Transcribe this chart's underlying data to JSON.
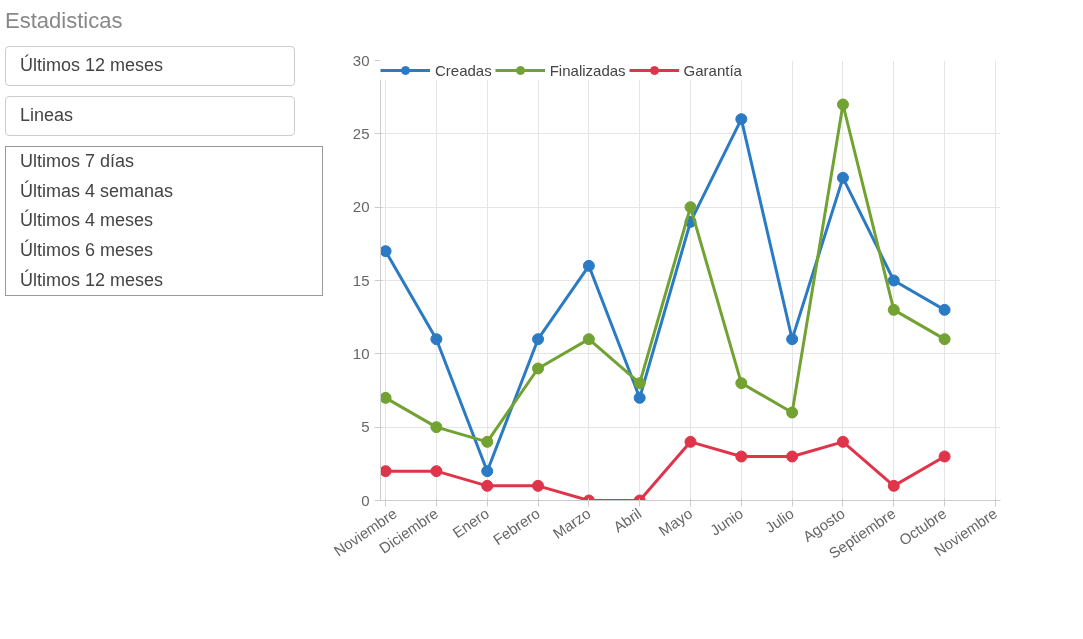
{
  "chart_data": {
    "type": "line",
    "title": "Estadisticas",
    "annotations": [
      "Últimos 12 meses",
      "Lineas",
      "Ultimos 7 días",
      "Últimas 4 semanas",
      "Últimos 4 meses",
      "Últimos 6 meses",
      "Últimos 12 meses"
    ],
    "categories": [
      "Noviembre",
      "Diciembre",
      "Enero",
      "Febrero",
      "Marzo",
      "Abril",
      "Mayo",
      "Junio",
      "Julio",
      "Agosto",
      "Septiembre",
      "Octubre",
      "Noviembre"
    ],
    "series": [
      {
        "name": "Creadas",
        "color": "#2a7bc4",
        "values": [
          17,
          11,
          2,
          11,
          16,
          7,
          19,
          26,
          11,
          22,
          15,
          13,
          null
        ]
      },
      {
        "name": "Finalizadas",
        "color": "#72a232",
        "values": [
          7,
          5,
          4,
          9,
          11,
          8,
          20,
          8,
          6,
          27,
          13,
          11,
          null
        ]
      },
      {
        "name": "Garantía",
        "color": "#e0344a",
        "values": [
          2,
          2,
          1,
          1,
          0,
          0,
          4,
          3,
          3,
          4,
          1,
          3,
          null
        ]
      }
    ],
    "ylim": [
      0,
      30
    ],
    "yticks": [
      0,
      5,
      10,
      15,
      20,
      25,
      30
    ],
    "grid": true,
    "legend": "top left",
    "marker": "circle",
    "line_style": "solid"
  }
}
